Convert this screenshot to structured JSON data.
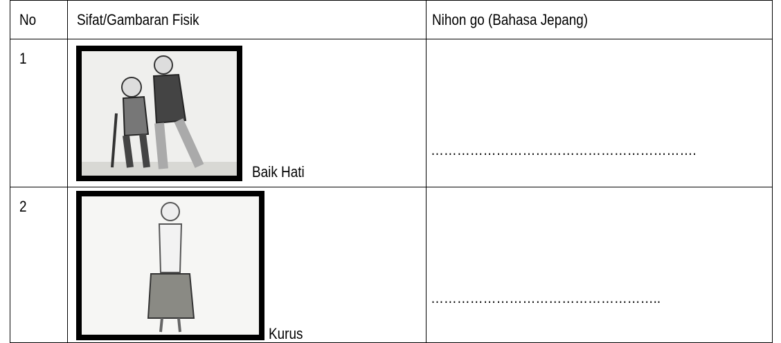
{
  "table": {
    "header": [
      "No",
      "Sifat/Gambaran Fisik",
      "Nihon go (Bahasa Jepang)"
    ],
    "rows": [
      [
        "1",
        "Baik Hati",
        "……………………………………………………."
      ],
      [
        "2",
        "Kurus",
        "…………………………………………….."
      ]
    ]
  }
}
